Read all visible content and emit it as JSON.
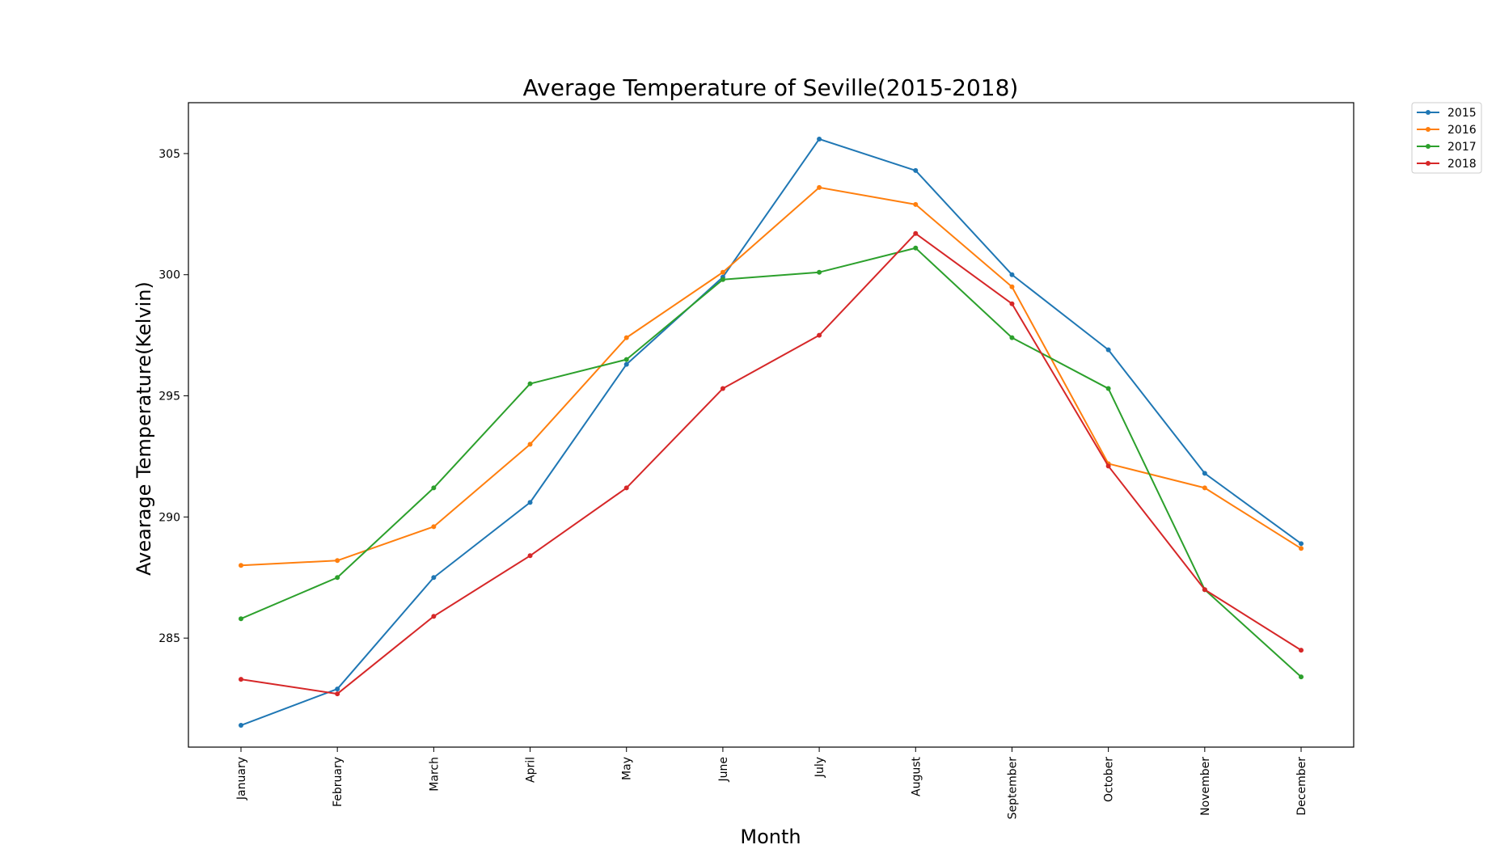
{
  "chart_data": {
    "type": "line",
    "title": "Average Temperature of Seville(2015-2018)",
    "xlabel": "Month",
    "ylabel": "Avearage Temperature(Kelvin)",
    "categories": [
      "January",
      "February",
      "March",
      "April",
      "May",
      "June",
      "July",
      "August",
      "September",
      "October",
      "November",
      "December"
    ],
    "ylim": [
      280.5,
      307.1
    ],
    "yticks": [
      "285",
      "290",
      "295",
      "300",
      "305"
    ],
    "grid": false,
    "legend_position": "outside-top-right",
    "series": [
      {
        "name": "2015",
        "color": "#1f77b4",
        "values": [
          281.4,
          282.9,
          287.5,
          290.6,
          296.3,
          299.9,
          305.6,
          304.3,
          300.0,
          296.9,
          291.8,
          288.9
        ]
      },
      {
        "name": "2016",
        "color": "#ff7f0e",
        "values": [
          288.0,
          288.2,
          289.6,
          293.0,
          297.4,
          300.1,
          303.6,
          302.9,
          299.5,
          292.2,
          291.2,
          288.7
        ]
      },
      {
        "name": "2017",
        "color": "#2ca02c",
        "values": [
          285.8,
          287.5,
          291.2,
          295.5,
          296.5,
          299.8,
          300.1,
          301.1,
          297.4,
          295.3,
          287.0,
          283.4
        ]
      },
      {
        "name": "2018",
        "color": "#d62728",
        "values": [
          283.3,
          282.7,
          285.9,
          288.4,
          291.2,
          295.3,
          297.5,
          301.7,
          298.8,
          292.1,
          287.0,
          284.5
        ]
      }
    ]
  }
}
